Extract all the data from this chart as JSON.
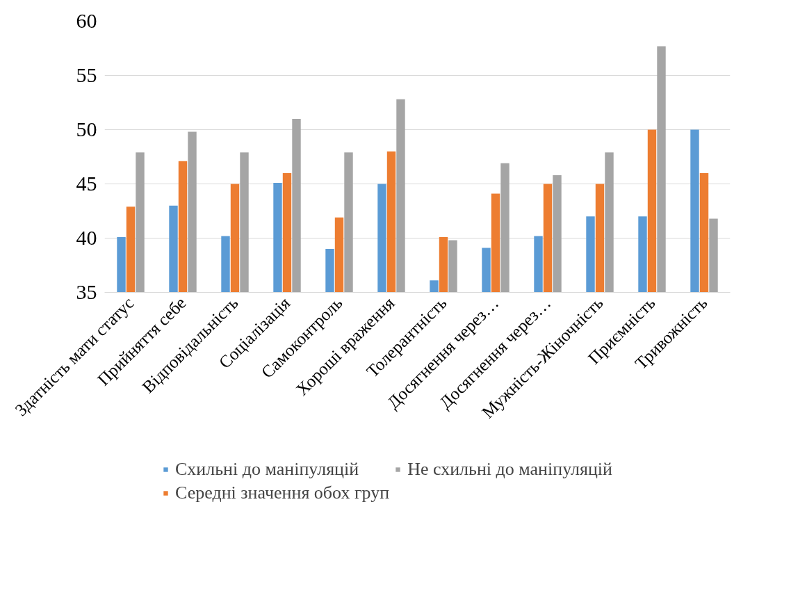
{
  "chart_data": {
    "type": "bar",
    "categories": [
      "Здатність мати статус",
      "Прийняття себе",
      "Відповідальність",
      "Соціалізація",
      "Самоконтроль",
      "Хороші враження",
      "Толерантність",
      "Досягнення через…",
      "Досягнення через…",
      "Мужність-Жіночність",
      "Приємність",
      "Тривожність"
    ],
    "series": [
      {
        "name": "Схильні до маніпуляцій",
        "color": "#5b9bd5",
        "values": [
          40.1,
          43.0,
          40.2,
          45.1,
          39.0,
          45.0,
          36.1,
          39.1,
          40.2,
          42.0,
          42.0,
          50.0
        ]
      },
      {
        "name": "Середні значення обох груп",
        "color": "#ed7d31",
        "values": [
          42.9,
          47.1,
          45.0,
          46.0,
          41.9,
          48.0,
          40.1,
          44.1,
          45.0,
          45.0,
          50.0,
          46.0
        ]
      },
      {
        "name": "Не схильні до маніпуляцій",
        "color": "#a5a5a5",
        "values": [
          47.9,
          49.8,
          47.9,
          51.0,
          47.9,
          52.8,
          39.8,
          46.9,
          45.8,
          47.9,
          57.7,
          41.8
        ]
      }
    ],
    "ylim": [
      35,
      60
    ],
    "yticks": [
      35,
      40,
      45,
      50,
      55,
      60
    ],
    "grid": "y",
    "legend": "bottom"
  }
}
